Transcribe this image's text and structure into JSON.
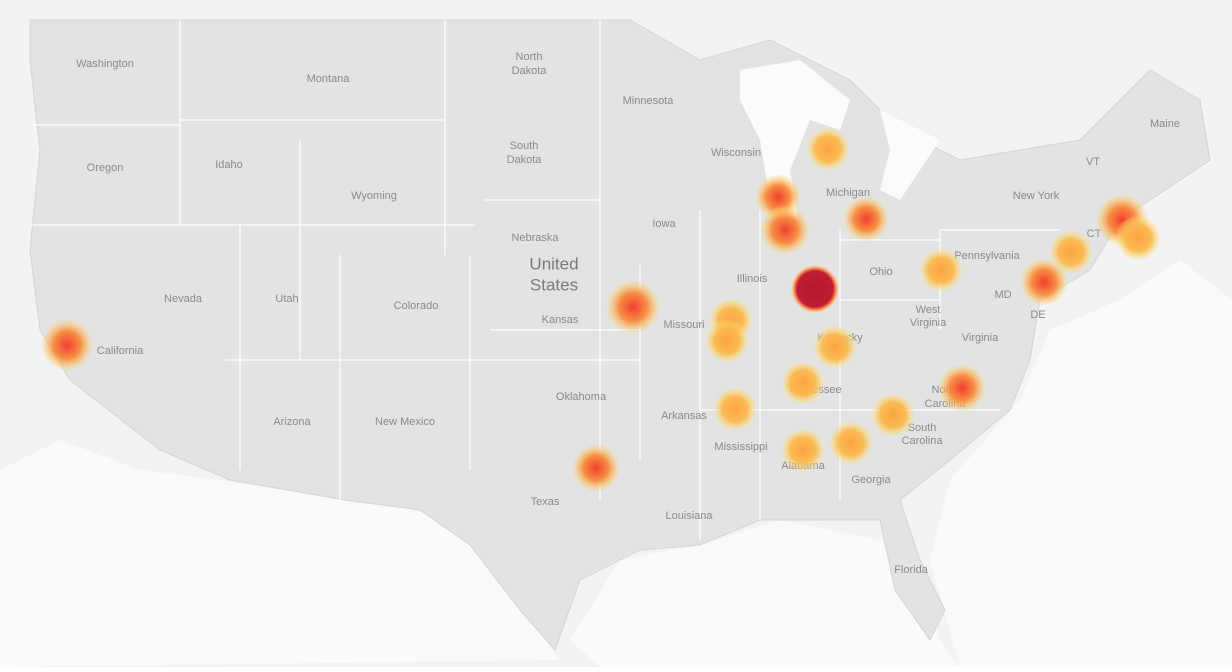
{
  "map": {
    "country_label": [
      "United",
      "States"
    ],
    "state_labels": [
      "Washington",
      "Montana",
      [
        "North",
        "Dakota"
      ],
      "Minnesota",
      "Oregon",
      "Idaho",
      [
        "South",
        "Dakota"
      ],
      "Wisconsin",
      "Michigan",
      "Wyoming",
      "New York",
      "Maine",
      "VT",
      "Nebraska",
      "Iowa",
      "CT",
      "Pennsylvania",
      "Illinois",
      "Ohio",
      "Nevada",
      "Utah",
      "Colorado",
      "Kansas",
      "Missouri",
      "California",
      "MD",
      [
        "West",
        "Virginia"
      ],
      "DE",
      "Virginia",
      "Kentucky",
      "Tennessee",
      "Oklahoma",
      "Arkansas",
      [
        "North",
        "Carolina"
      ],
      "Arizona",
      "New Mexico",
      "Mississippi",
      [
        "South",
        "Carolina"
      ],
      "Alabama",
      "Georgia",
      "Texas",
      "Louisiana",
      "Florida"
    ]
  }
}
